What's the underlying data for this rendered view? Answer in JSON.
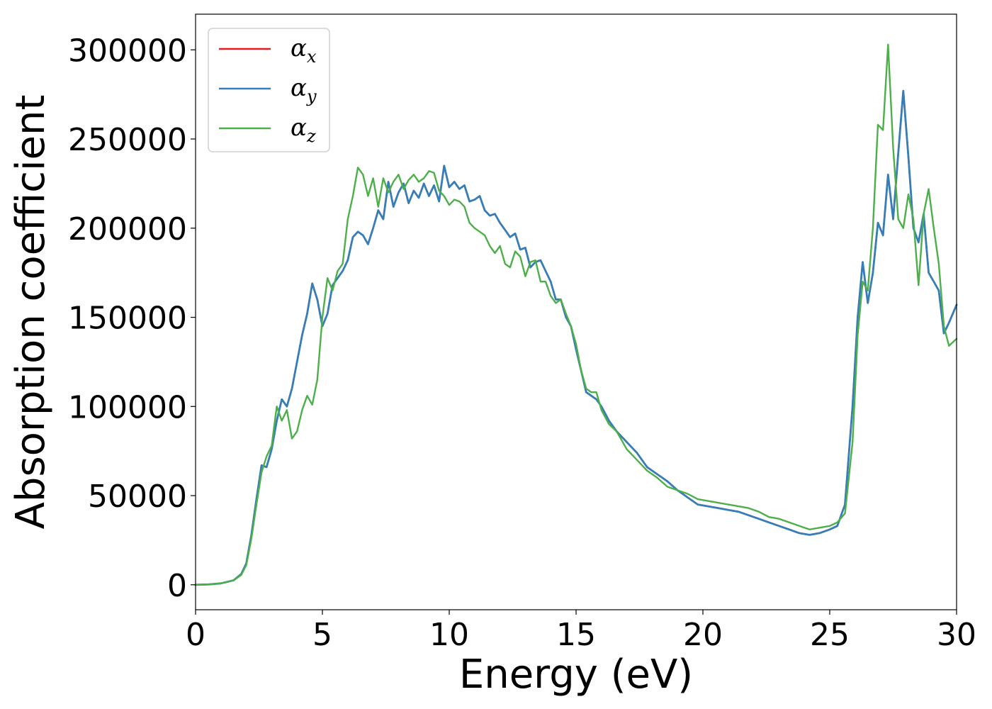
{
  "chart_data": {
    "type": "line",
    "xlabel": "Energy (eV)",
    "ylabel": "Absorption coefficient",
    "xlim": [
      0,
      30
    ],
    "ylim": [
      -14000,
      320000
    ],
    "xticks": [
      0,
      5,
      10,
      15,
      20,
      25,
      30
    ],
    "xtick_labels": [
      "0",
      "5",
      "10",
      "15",
      "20",
      "25",
      "30"
    ],
    "yticks": [
      0,
      50000,
      100000,
      150000,
      200000,
      250000,
      300000
    ],
    "ytick_labels": [
      "0",
      "50000",
      "100000",
      "150000",
      "200000",
      "250000",
      "300000"
    ],
    "grid": false,
    "legend_position": "top-left",
    "series": [
      {
        "name": "α_x",
        "legend_symbol": "α",
        "legend_subscript": "x",
        "color": "#e41a1c",
        "x": [
          0,
          0.5,
          1,
          1.5,
          1.8,
          2,
          2.2,
          2.4,
          2.6,
          2.8,
          3,
          3.2,
          3.4,
          3.6,
          3.8,
          4,
          4.2,
          4.4,
          4.6,
          4.8,
          5,
          5.2,
          5.4,
          5.6,
          5.8,
          6,
          6.2,
          6.4,
          6.6,
          6.8,
          7,
          7.2,
          7.4,
          7.6,
          7.8,
          8,
          8.2,
          8.4,
          8.6,
          8.8,
          9,
          9.2,
          9.4,
          9.6,
          9.8,
          10,
          10.2,
          10.4,
          10.6,
          10.8,
          11,
          11.2,
          11.4,
          11.6,
          11.8,
          12,
          12.2,
          12.4,
          12.6,
          12.8,
          13,
          13.2,
          13.4,
          13.6,
          13.8,
          14,
          14.2,
          14.4,
          14.6,
          14.8,
          15,
          15.2,
          15.4,
          15.6,
          15.8,
          16,
          16.3,
          16.6,
          17,
          17.4,
          17.8,
          18.2,
          18.6,
          19,
          19.4,
          19.8,
          20.2,
          20.6,
          21,
          21.4,
          21.8,
          22.2,
          22.6,
          23,
          23.4,
          23.8,
          24.2,
          24.6,
          25,
          25.3,
          25.6,
          25.9,
          26.1,
          26.3,
          26.5,
          26.7,
          26.9,
          27.1,
          27.3,
          27.5,
          27.7,
          27.9,
          28.1,
          28.3,
          28.5,
          28.7,
          28.9,
          29.1,
          29.3,
          29.5,
          29.7,
          30
        ],
        "values": [
          0,
          200,
          800,
          2500,
          6000,
          12000,
          28000,
          48000,
          67000,
          66000,
          76000,
          92000,
          104000,
          100000,
          110000,
          125000,
          140000,
          152000,
          169000,
          160000,
          145000,
          152000,
          168000,
          172000,
          176000,
          182000,
          195000,
          198000,
          196000,
          191000,
          200000,
          210000,
          205000,
          226000,
          212000,
          220000,
          225000,
          214000,
          221000,
          217000,
          225000,
          218000,
          224000,
          215000,
          235000,
          223000,
          226000,
          222000,
          224000,
          215000,
          216000,
          218000,
          210000,
          207000,
          208000,
          203000,
          199000,
          195000,
          197000,
          188000,
          189000,
          178000,
          181000,
          182000,
          176000,
          170000,
          160000,
          160000,
          150000,
          145000,
          132000,
          120000,
          108000,
          106000,
          104000,
          100000,
          92000,
          86000,
          80000,
          74000,
          66000,
          62000,
          58000,
          53000,
          49000,
          45000,
          44000,
          43000,
          42000,
          41000,
          39000,
          37000,
          35000,
          33000,
          31000,
          29000,
          28000,
          29000,
          31000,
          33000,
          45000,
          100000,
          150000,
          181000,
          158000,
          175000,
          203000,
          196000,
          230000,
          205000,
          242000,
          277000,
          240000,
          200000,
          192000,
          208000,
          175000,
          170000,
          165000,
          141000,
          147000,
          157000
        ],
        "dashed": true
      },
      {
        "name": "α_y",
        "legend_symbol": "α",
        "legend_subscript": "y",
        "color": "#377eb8",
        "x": [
          0,
          0.5,
          1,
          1.5,
          1.8,
          2,
          2.2,
          2.4,
          2.6,
          2.8,
          3,
          3.2,
          3.4,
          3.6,
          3.8,
          4,
          4.2,
          4.4,
          4.6,
          4.8,
          5,
          5.2,
          5.4,
          5.6,
          5.8,
          6,
          6.2,
          6.4,
          6.6,
          6.8,
          7,
          7.2,
          7.4,
          7.6,
          7.8,
          8,
          8.2,
          8.4,
          8.6,
          8.8,
          9,
          9.2,
          9.4,
          9.6,
          9.8,
          10,
          10.2,
          10.4,
          10.6,
          10.8,
          11,
          11.2,
          11.4,
          11.6,
          11.8,
          12,
          12.2,
          12.4,
          12.6,
          12.8,
          13,
          13.2,
          13.4,
          13.6,
          13.8,
          14,
          14.2,
          14.4,
          14.6,
          14.8,
          15,
          15.2,
          15.4,
          15.6,
          15.8,
          16,
          16.3,
          16.6,
          17,
          17.4,
          17.8,
          18.2,
          18.6,
          19,
          19.4,
          19.8,
          20.2,
          20.6,
          21,
          21.4,
          21.8,
          22.2,
          22.6,
          23,
          23.4,
          23.8,
          24.2,
          24.6,
          25,
          25.3,
          25.6,
          25.9,
          26.1,
          26.3,
          26.5,
          26.7,
          26.9,
          27.1,
          27.3,
          27.5,
          27.7,
          27.9,
          28.1,
          28.3,
          28.5,
          28.7,
          28.9,
          29.1,
          29.3,
          29.5,
          29.7,
          30
        ],
        "values": [
          0,
          200,
          800,
          2500,
          6000,
          12000,
          28000,
          48000,
          67000,
          66000,
          76000,
          92000,
          104000,
          100000,
          110000,
          125000,
          140000,
          152000,
          169000,
          160000,
          145000,
          152000,
          168000,
          172000,
          176000,
          182000,
          195000,
          198000,
          196000,
          191000,
          200000,
          210000,
          205000,
          226000,
          212000,
          220000,
          225000,
          214000,
          221000,
          217000,
          225000,
          218000,
          224000,
          215000,
          235000,
          223000,
          226000,
          222000,
          224000,
          215000,
          216000,
          218000,
          210000,
          207000,
          208000,
          203000,
          199000,
          195000,
          197000,
          188000,
          189000,
          178000,
          181000,
          182000,
          176000,
          170000,
          160000,
          160000,
          150000,
          145000,
          132000,
          120000,
          108000,
          106000,
          104000,
          100000,
          92000,
          86000,
          80000,
          74000,
          66000,
          62000,
          58000,
          53000,
          49000,
          45000,
          44000,
          43000,
          42000,
          41000,
          39000,
          37000,
          35000,
          33000,
          31000,
          29000,
          28000,
          29000,
          31000,
          33000,
          45000,
          100000,
          150000,
          181000,
          158000,
          175000,
          203000,
          196000,
          230000,
          205000,
          242000,
          277000,
          240000,
          200000,
          192000,
          208000,
          175000,
          170000,
          165000,
          141000,
          147000,
          157000
        ]
      },
      {
        "name": "α_z",
        "legend_symbol": "α",
        "legend_subscript": "z",
        "color": "#4daf4a",
        "x": [
          0,
          0.5,
          1,
          1.5,
          1.8,
          2,
          2.2,
          2.4,
          2.6,
          2.8,
          3,
          3.2,
          3.4,
          3.6,
          3.8,
          4,
          4.2,
          4.4,
          4.6,
          4.8,
          5,
          5.2,
          5.4,
          5.6,
          5.8,
          6,
          6.2,
          6.4,
          6.6,
          6.8,
          7,
          7.2,
          7.4,
          7.6,
          7.8,
          8,
          8.2,
          8.4,
          8.6,
          8.8,
          9,
          9.2,
          9.4,
          9.6,
          9.8,
          10,
          10.2,
          10.4,
          10.6,
          10.8,
          11,
          11.2,
          11.4,
          11.6,
          11.8,
          12,
          12.2,
          12.4,
          12.6,
          12.8,
          13,
          13.2,
          13.4,
          13.6,
          13.8,
          14,
          14.2,
          14.4,
          14.6,
          14.8,
          15,
          15.2,
          15.4,
          15.6,
          15.8,
          16,
          16.3,
          16.6,
          17,
          17.4,
          17.8,
          18.2,
          18.6,
          19,
          19.4,
          19.8,
          20.2,
          20.6,
          21,
          21.4,
          21.8,
          22.2,
          22.6,
          23,
          23.4,
          23.8,
          24.2,
          24.6,
          25,
          25.3,
          25.6,
          25.9,
          26.1,
          26.3,
          26.5,
          26.7,
          26.9,
          27.1,
          27.3,
          27.5,
          27.7,
          27.9,
          28.1,
          28.3,
          28.5,
          28.7,
          28.9,
          29.1,
          29.3,
          29.5,
          29.7,
          30
        ],
        "values": [
          0,
          200,
          800,
          2500,
          5500,
          11000,
          26000,
          45000,
          63000,
          72000,
          78000,
          100000,
          92000,
          98000,
          82000,
          86000,
          98000,
          106000,
          101000,
          115000,
          150000,
          172000,
          165000,
          176000,
          180000,
          205000,
          218000,
          234000,
          230000,
          218000,
          228000,
          212000,
          228000,
          220000,
          226000,
          230000,
          222000,
          227000,
          230000,
          226000,
          228000,
          232000,
          231000,
          221000,
          218000,
          213000,
          216000,
          215000,
          212000,
          203000,
          200000,
          198000,
          196000,
          190000,
          186000,
          190000,
          180000,
          178000,
          187000,
          184000,
          173000,
          181000,
          182000,
          170000,
          170000,
          162000,
          158000,
          160000,
          152000,
          145000,
          135000,
          120000,
          110000,
          108000,
          108000,
          98000,
          90000,
          86000,
          76000,
          70000,
          64000,
          60000,
          55000,
          53000,
          51000,
          48000,
          47000,
          46000,
          45000,
          44000,
          43000,
          41000,
          38000,
          37000,
          35000,
          33000,
          31000,
          32000,
          33000,
          35000,
          40000,
          80000,
          140000,
          170000,
          165000,
          200000,
          258000,
          255000,
          303000,
          245000,
          205000,
          200000,
          219000,
          205000,
          168000,
          208000,
          222000,
          200000,
          180000,
          145000,
          134000,
          138000
        ]
      }
    ]
  }
}
